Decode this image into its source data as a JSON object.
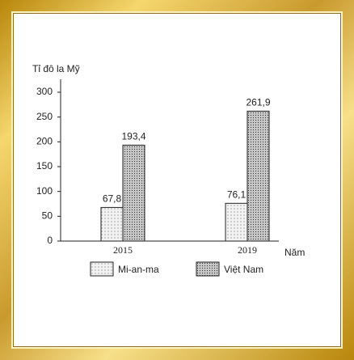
{
  "chart_data": {
    "type": "bar",
    "y_label": "Tỉ đô la Mỹ",
    "x_label": "Năm",
    "categories": [
      "2015",
      "2019"
    ],
    "series": [
      {
        "name": "Mi-an-ma",
        "color": "#f2f2f2",
        "values": [
          67.8,
          76.1
        ],
        "value_labels": [
          "67,8",
          "76,1"
        ]
      },
      {
        "name": "Việt Nam",
        "color": "#c8c8c8",
        "values": [
          193.4,
          261.9
        ],
        "value_labels": [
          "193,4",
          "261,9"
        ]
      }
    ],
    "ylim": [
      0,
      300
    ],
    "yticks": [
      0,
      50,
      100,
      150,
      200,
      250,
      300
    ]
  }
}
